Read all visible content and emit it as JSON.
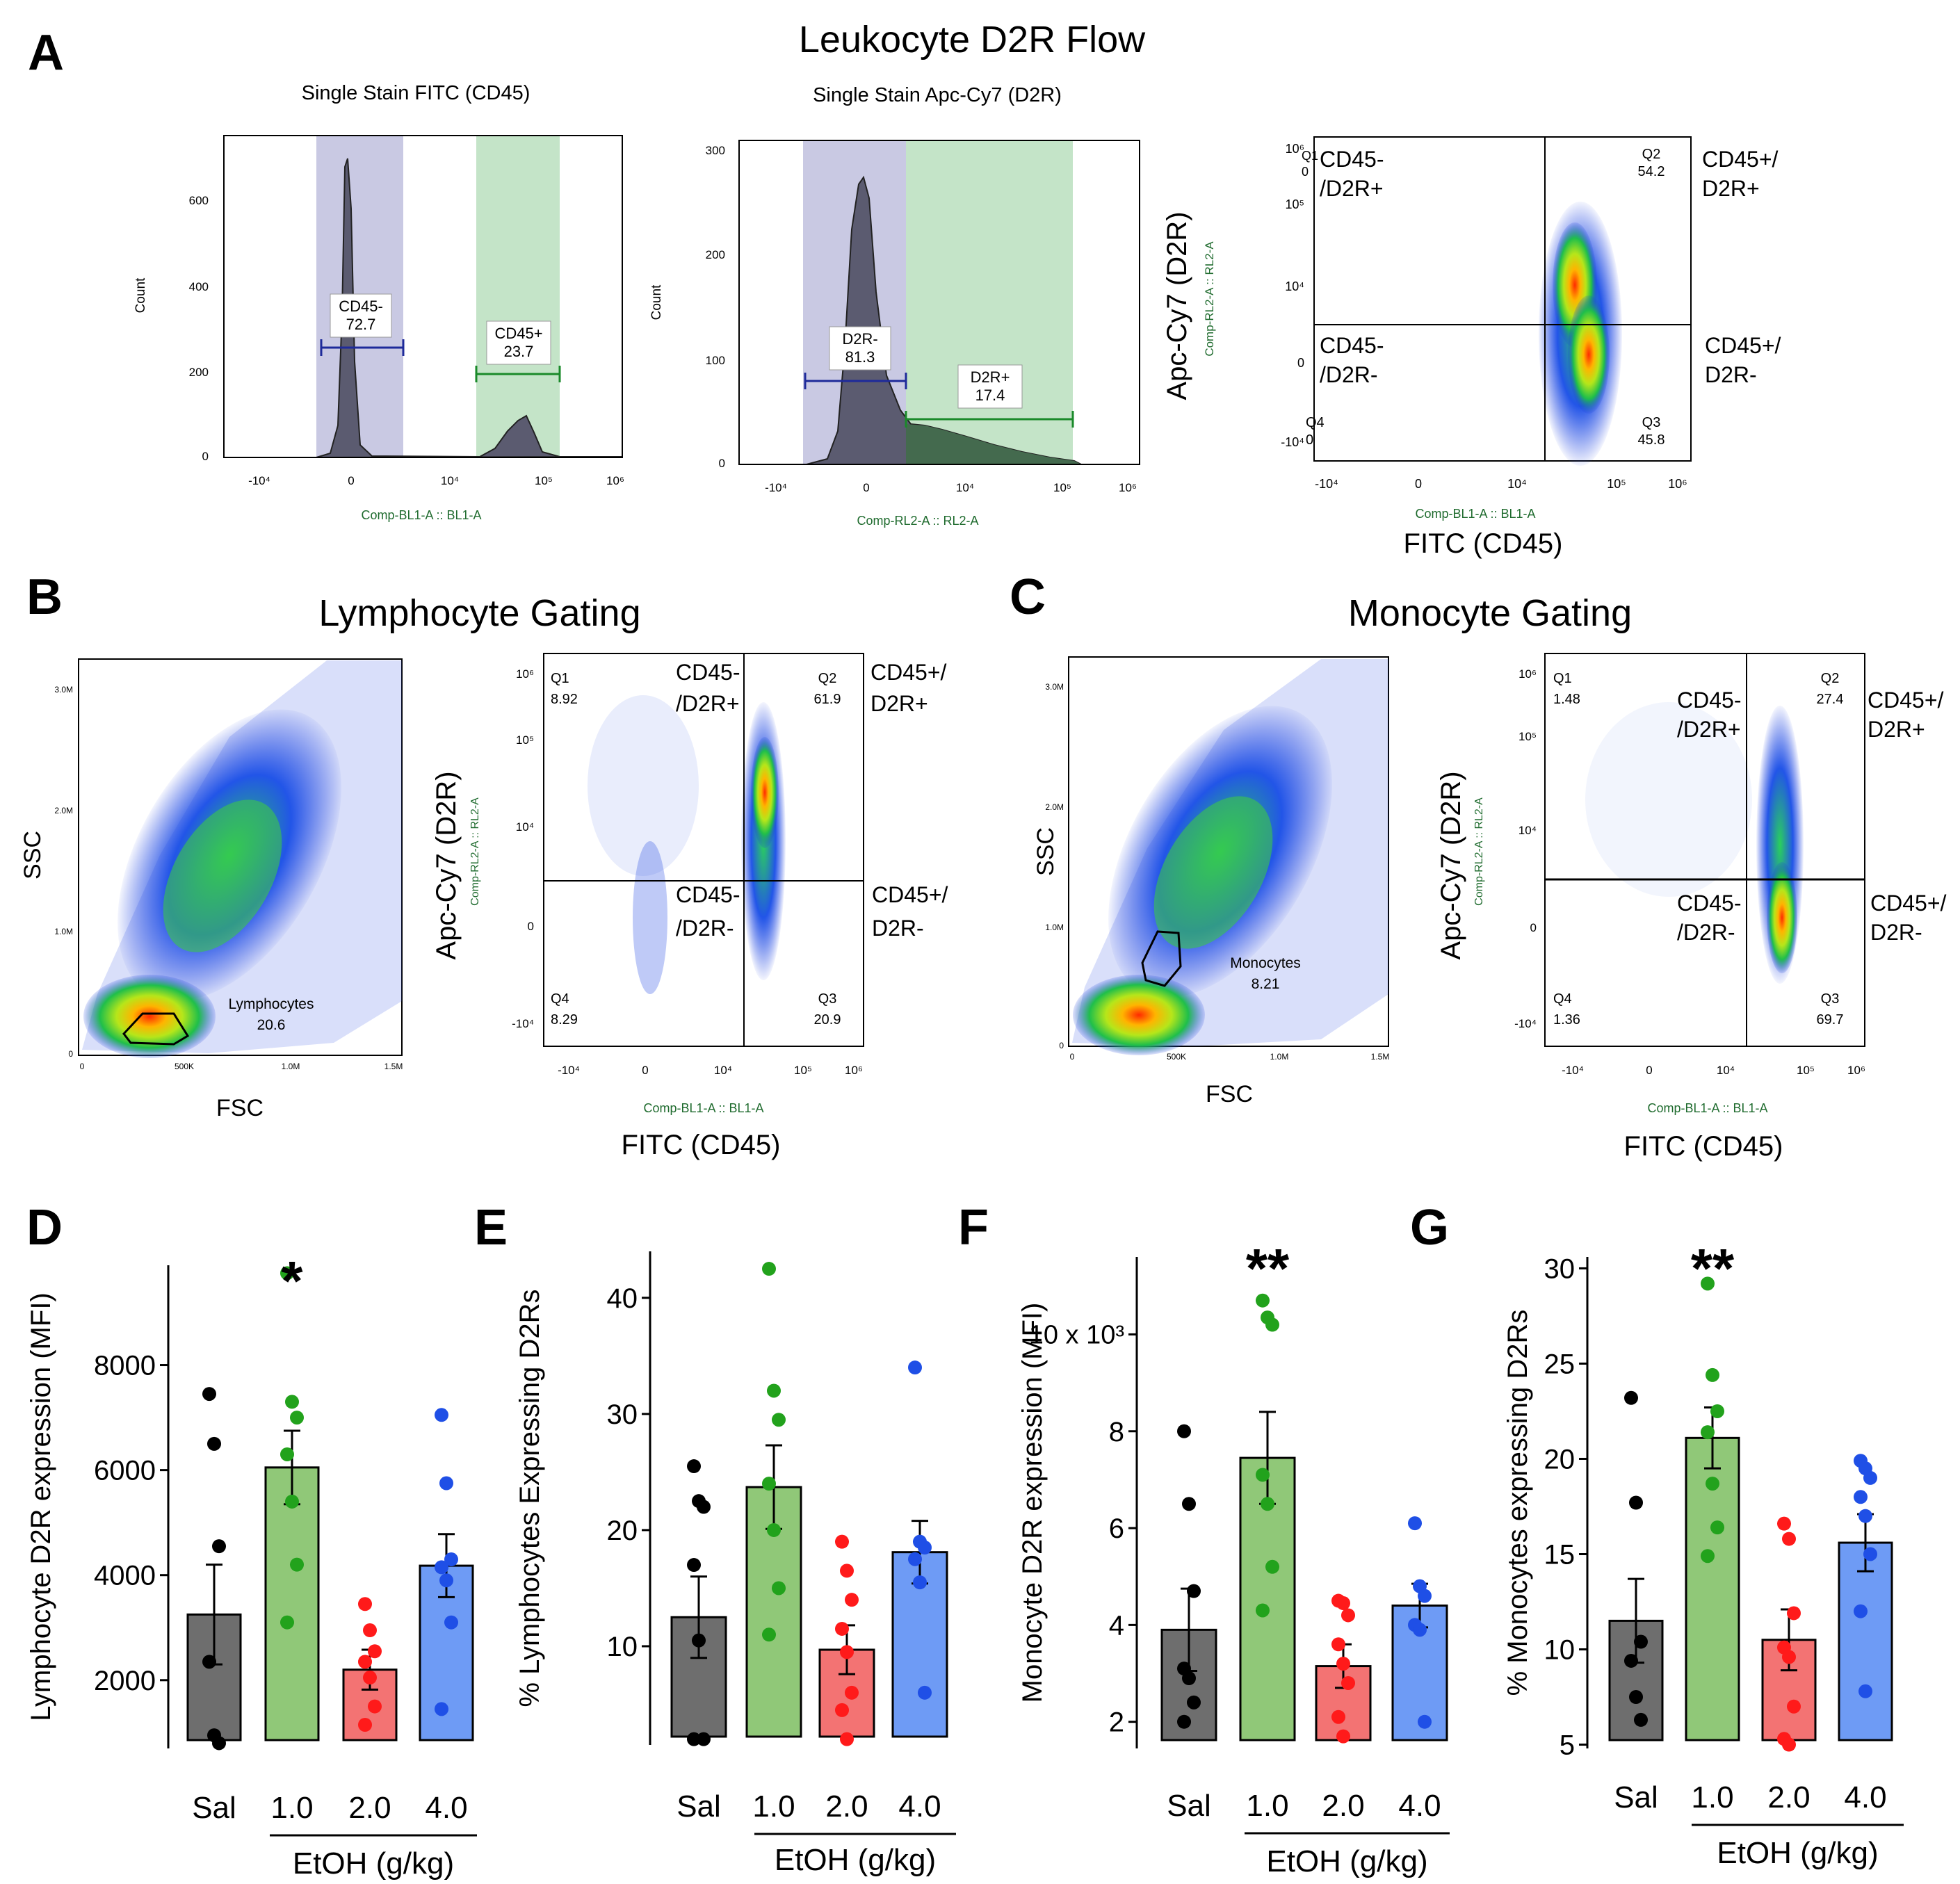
{
  "colors": {
    "black": "#6e6e6e",
    "green": "#90c878",
    "red": "#f37373",
    "blue": "#6e9bf5",
    "dot_black": "#000000",
    "dot_green": "#22a21c",
    "dot_red": "#ff1a1a",
    "dot_blue": "#1f4fe6",
    "neg_gate": "#c9c9e3",
    "pos_gate": "#c4e4c8",
    "gate_neg_line": "#1e2a9a",
    "gate_pos_line": "#1a8a2a"
  },
  "panel_A": {
    "letter": "A",
    "title": "Leukocyte D2R Flow",
    "hist1": {
      "title": "Single Stain FITC (CD45)",
      "ylabel": "Count",
      "xlabel": "Comp-BL1-A :: BL1-A",
      "yticks": [
        "0",
        "200",
        "400",
        "600"
      ],
      "xticks": [
        "-10⁴",
        "0",
        "10⁴",
        "10⁵",
        "10⁶"
      ],
      "neg_gate": {
        "label": "CD45-",
        "value": "72.7"
      },
      "pos_gate": {
        "label": "CD45+",
        "value": "23.7"
      }
    },
    "hist2": {
      "title": "Single Stain Apc-Cy7 (D2R)",
      "ylabel": "Count",
      "xlabel": "Comp-RL2-A :: RL2-A",
      "yticks": [
        "0",
        "100",
        "200",
        "300"
      ],
      "xticks": [
        "-10⁴",
        "0",
        "10⁴",
        "10⁵",
        "10⁶"
      ],
      "neg_gate": {
        "label": "D2R-",
        "value": "81.3"
      },
      "pos_gate": {
        "label": "D2R+",
        "value": "17.4"
      }
    },
    "scatter": {
      "ylabel": "Apc-Cy7 (D2R)",
      "ylabel_small": "Comp-RL2-A :: RL2-A",
      "xlabel_small": "Comp-BL1-A :: BL1-A",
      "xlabel": "FITC (CD45)",
      "yticks": [
        "-10⁴",
        "0",
        "10⁴",
        "10⁵",
        "10⁶"
      ],
      "xticks": [
        "-10⁴",
        "0",
        "10⁴",
        "10⁵",
        "10⁶"
      ],
      "quadrants": {
        "q1": {
          "name": "Q1",
          "value": "0"
        },
        "q2": {
          "name": "Q2",
          "value": "54.2"
        },
        "q3": {
          "name": "Q3",
          "value": "45.8"
        },
        "q4": {
          "name": "Q4",
          "value": "0"
        }
      },
      "labels": {
        "ul1": "CD45-",
        "ul2": "/D2R+",
        "ll1": "CD45-",
        "ll2": "/D2R-",
        "ur1": "CD45+/",
        "ur2": "D2R+",
        "lr1": "CD45+/",
        "lr2": "D2R-"
      }
    }
  },
  "panel_B": {
    "letter": "B",
    "title": "Lymphocyte Gating",
    "fsc": {
      "xlabel": "FSC",
      "ylabel": "SSC",
      "yticks": [
        "0",
        "1.0M",
        "2.0M",
        "3.0M"
      ],
      "xticks": [
        "0",
        "500K",
        "1.0M",
        "1.5M"
      ],
      "gate_name": "Lymphocytes",
      "gate_value": "20.6"
    },
    "quad": {
      "ylabel": "Apc-Cy7 (D2R)",
      "ylabel_small": "Comp-RL2-A :: RL2-A",
      "xlabel_small": "Comp-BL1-A :: BL1-A",
      "xlabel": "FITC (CD45)",
      "yticks": [
        "-10⁴",
        "0",
        "10⁴",
        "10⁵",
        "10⁶"
      ],
      "xticks": [
        "-10⁴",
        "0",
        "10⁴",
        "10⁵",
        "10⁶"
      ],
      "quadrants": {
        "q1": {
          "name": "Q1",
          "value": "8.92"
        },
        "q2": {
          "name": "Q2",
          "value": "61.9"
        },
        "q3": {
          "name": "Q3",
          "value": "20.9"
        },
        "q4": {
          "name": "Q4",
          "value": "8.29"
        }
      },
      "labels": {
        "ul1": "CD45-",
        "ul2": "/D2R+",
        "ll1": "CD45-",
        "ll2": "/D2R-",
        "ur1": "CD45+/",
        "ur2": "D2R+",
        "lr1": "CD45+/",
        "lr2": "D2R-"
      }
    }
  },
  "panel_C": {
    "letter": "C",
    "title": "Monocyte Gating",
    "fsc": {
      "xlabel": "FSC",
      "ylabel": "SSC",
      "yticks": [
        "0",
        "1.0M",
        "2.0M",
        "3.0M"
      ],
      "xticks": [
        "0",
        "500K",
        "1.0M",
        "1.5M"
      ],
      "gate_name": "Monocytes",
      "gate_value": "8.21"
    },
    "quad": {
      "ylabel": "Apc-Cy7 (D2R)",
      "ylabel_small": "Comp-RL2-A :: RL2-A",
      "xlabel_small": "Comp-BL1-A :: BL1-A",
      "xlabel": "FITC (CD45)",
      "yticks": [
        "-10⁴",
        "0",
        "10⁴",
        "10⁵",
        "10⁶"
      ],
      "xticks": [
        "-10⁴",
        "0",
        "10⁴",
        "10⁵",
        "10⁶"
      ],
      "quadrants": {
        "q1": {
          "name": "Q1",
          "value": "1.48"
        },
        "q2": {
          "name": "Q2",
          "value": "27.4"
        },
        "q3": {
          "name": "Q3",
          "value": "69.7"
        },
        "q4": {
          "name": "Q4",
          "value": "1.36"
        }
      },
      "labels": {
        "ul1": "CD45-",
        "ul2": "/D2R+",
        "ll1": "CD45-",
        "ll2": "/D2R-",
        "ur1": "CD45+/",
        "ur2": "D2R+",
        "lr1": "CD45+/",
        "lr2": "D2R-"
      }
    }
  },
  "chart_data": [
    {
      "type": "bar",
      "panel": "D",
      "ylabel": "Lymphocyte D2R expression (MFI)",
      "categories": [
        "Sal",
        "1.0",
        "2.0",
        "4.0"
      ],
      "group_label": "EtOH (g/kg)",
      "ylim": [
        700,
        9900
      ],
      "yticks": [
        2000,
        4000,
        6000,
        8000
      ],
      "ytick_labels": [
        "2000",
        "4000",
        "6000",
        "8000"
      ],
      "means": [
        3250,
        6050,
        2200,
        4180
      ],
      "sems": [
        950,
        700,
        380,
        600
      ],
      "points": [
        [
          7450,
          6500,
          4550,
          2350,
          950,
          800
        ],
        [
          9750,
          7300,
          7000,
          6300,
          5400,
          4200,
          3100
        ],
        [
          3450,
          2950,
          2550,
          2350,
          2050,
          1500,
          1150
        ],
        [
          7050,
          5750,
          4300,
          4150,
          3900,
          3100,
          1450
        ]
      ],
      "significance": [
        "",
        "*",
        "",
        ""
      ]
    },
    {
      "type": "bar",
      "panel": "E",
      "ylabel": "% Lymphocytes Expressing D2Rs",
      "categories": [
        "Sal",
        "1.0",
        "2.0",
        "4.0"
      ],
      "group_label": "EtOH (g/kg)",
      "ylim": [
        1.5,
        44
      ],
      "yticks": [
        10,
        20,
        30,
        40
      ],
      "ytick_labels": [
        "10",
        "20",
        "30",
        "40"
      ],
      "means": [
        12.5,
        23.7,
        9.7,
        18.1
      ],
      "sems": [
        3.5,
        3.6,
        2.1,
        2.7
      ],
      "points": [
        [
          25.5,
          22.5,
          22,
          17,
          10.5,
          2,
          2
        ],
        [
          42.5,
          32,
          29.5,
          24,
          20,
          15,
          11
        ],
        [
          19,
          16.5,
          14,
          11.5,
          9.5,
          6,
          4.5,
          2
        ],
        [
          34,
          19,
          18.5,
          17.5,
          15.5,
          6
        ]
      ],
      "significance": [
        "",
        "",
        "",
        ""
      ]
    },
    {
      "type": "bar",
      "panel": "F",
      "ylabel": "Monocyte D2R expression (MFI)",
      "categories": [
        "Sal",
        "1.0",
        "2.0",
        "4.0"
      ],
      "group_label": "EtOH (g/kg)",
      "ylim": [
        1.45,
        11.6
      ],
      "yticks": [
        2,
        4,
        6,
        8,
        10
      ],
      "ytick_labels": [
        "2",
        "4",
        "6",
        "8",
        "10 x 10³"
      ],
      "means": [
        3.9,
        7.45,
        3.15,
        4.4
      ],
      "sems": [
        0.85,
        0.95,
        0.45,
        0.45
      ],
      "points": [
        [
          8,
          6.5,
          4.7,
          3.1,
          2.9,
          2.4,
          2.0
        ],
        [
          10.7,
          10.35,
          10.2,
          7.1,
          6.5,
          5.2,
          4.3
        ],
        [
          4.5,
          4.45,
          4.2,
          3.6,
          3.2,
          2.8,
          2.1,
          1.7
        ],
        [
          6.1,
          4.8,
          4.6,
          4.0,
          3.9,
          2.0
        ]
      ],
      "significance": [
        "",
        "**",
        "",
        ""
      ]
    },
    {
      "type": "bar",
      "panel": "G",
      "ylabel": "% Monocytes expressing D2Rs",
      "categories": [
        "Sal",
        "1.0",
        "2.0",
        "4.0"
      ],
      "group_label": "EtOH (g/kg)",
      "ylim": [
        4.8,
        30.6
      ],
      "yticks": [
        5,
        10,
        15,
        20,
        25,
        30
      ],
      "ytick_labels": [
        "5",
        "10",
        "15",
        "20",
        "25",
        "30"
      ],
      "means": [
        11.5,
        21.1,
        10.5,
        15.6
      ],
      "sems": [
        2.2,
        1.6,
        1.6,
        1.5
      ],
      "points": [
        [
          23.2,
          17.7,
          10.4,
          9.4,
          7.5,
          6.3
        ],
        [
          29.2,
          24.4,
          22.5,
          21.4,
          18.7,
          16.4,
          14.9
        ],
        [
          16.6,
          15.8,
          11.9,
          10.1,
          9.6,
          7.0,
          5.3,
          5.0
        ],
        [
          19.9,
          19.5,
          19.0,
          18.0,
          17.0,
          15.0,
          12.0,
          7.8
        ]
      ],
      "significance": [
        "",
        "**",
        "",
        ""
      ]
    }
  ]
}
